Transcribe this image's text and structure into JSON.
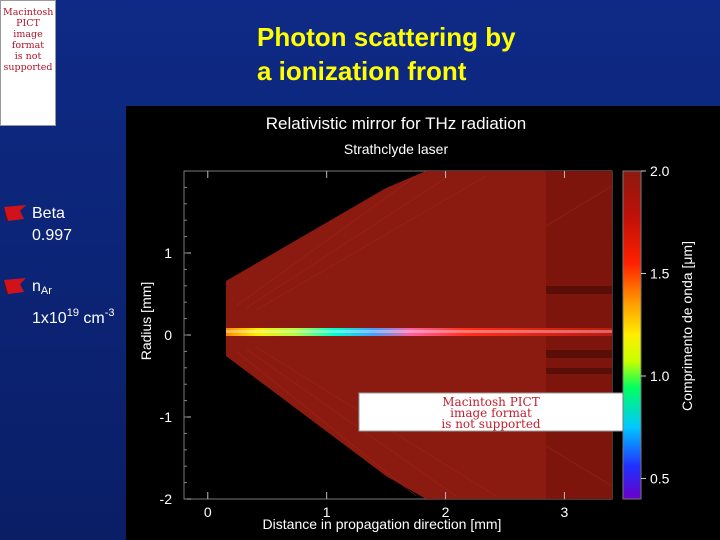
{
  "pict_placeholder": {
    "lines": [
      "Macintosh PICT",
      "image format",
      "is not supported"
    ]
  },
  "slide": {
    "title_lines": [
      "Photon scattering by",
      "a ionization front"
    ],
    "accent_color": "#ffff00",
    "background_color": "#0b1f6e"
  },
  "bullets": [
    {
      "icon": "red-flag-icon",
      "label": "Beta",
      "value": "0.997"
    },
    {
      "icon": "red-flag-icon",
      "symbol": "n",
      "symbol_sub": "Ar",
      "value_base": "1x10",
      "value_exp": "19",
      "value_unit": " cm",
      "value_unit_exp": "-3"
    }
  ],
  "figure": {
    "title": "Relativistic mirror for THz radiation",
    "subtitle": "Strathclyde laser",
    "xlabel": "Distance in propagation direction   [mm]",
    "ylabel": "Radius [mm]",
    "colorbar_label": "Comprimento de onda [μm]",
    "embedded_placeholder_lines": [
      "Macintosh PICT",
      "image format",
      "is not supported"
    ]
  },
  "chart_data": {
    "type": "heatmap",
    "title": "Relativistic mirror for THz radiation",
    "subtitle": "Strathclyde laser",
    "xlabel": "Distance in propagation direction   [mm]",
    "ylabel": "Radius [mm]",
    "xlim": [
      -0.2,
      3.4
    ],
    "ylim": [
      -2.0,
      2.0
    ],
    "x_ticks": [
      0,
      1,
      2,
      3
    ],
    "y_ticks": [
      -2,
      -1,
      0,
      1
    ],
    "colorbar": {
      "label": "Comprimento de onda [μm]",
      "range": [
        0.4,
        2.0
      ],
      "ticks": [
        0.5,
        1.0,
        1.5,
        2.0
      ]
    },
    "dominant_color": "#8b1a10",
    "beam_axis_radius": 0
  }
}
